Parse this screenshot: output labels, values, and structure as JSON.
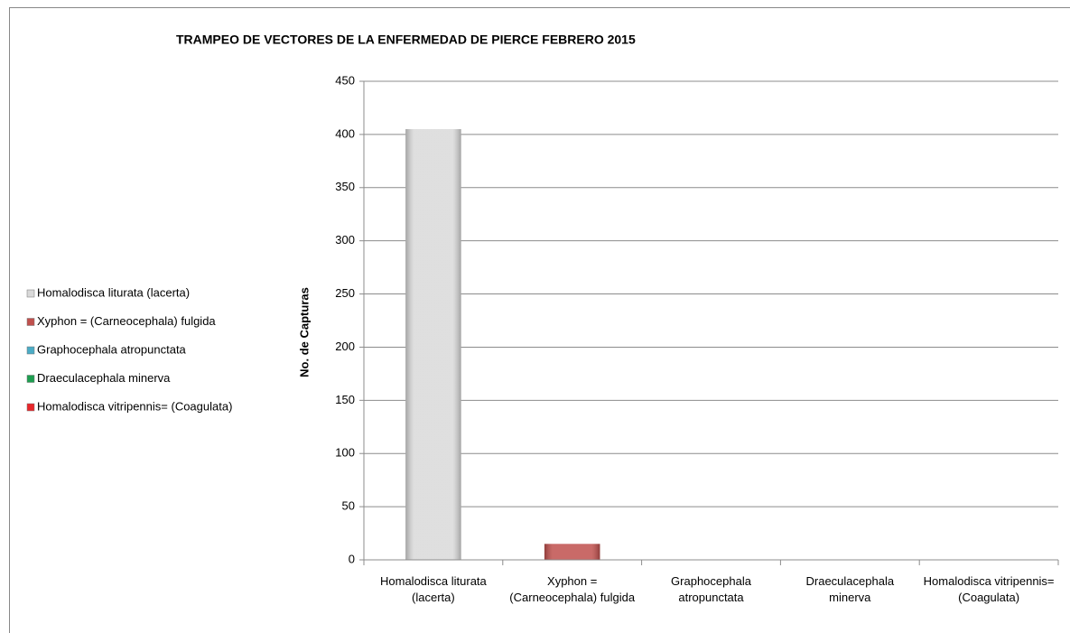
{
  "chart_data": {
    "type": "bar",
    "title": "TRAMPEO DE VECTORES DE LA ENFERMEDAD DE PIERCE  FEBRERO 2015",
    "y_label": "No. de Capturas",
    "categories": [
      "Homalodisca liturata  (lacerta)",
      "Xyphon = (Carneocephala) fulgida",
      "Graphocephala atropunctata",
      "Draeculacephala minerva",
      "Homalodisca vitripennis= (Coagulata)"
    ],
    "values": [
      405,
      15,
      0,
      0,
      0
    ],
    "colors": [
      "#d9d9d9",
      "#c0504d",
      "#4bacc6",
      "#1e9e50",
      "#e8262a"
    ],
    "ylim": [
      0,
      450
    ],
    "yticks": [
      0,
      50,
      100,
      150,
      200,
      250,
      300,
      350,
      400,
      450
    ],
    "grid": true,
    "legend": "left"
  }
}
